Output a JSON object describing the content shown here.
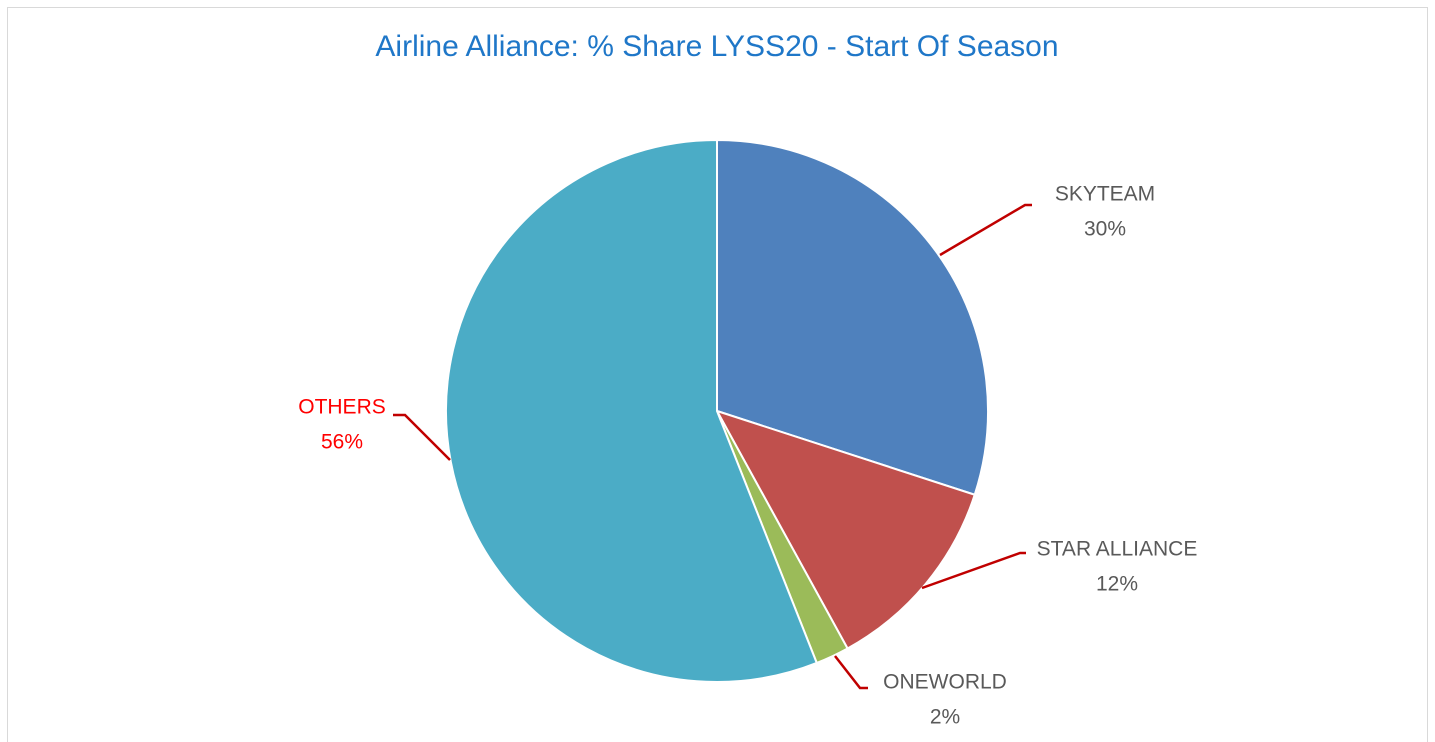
{
  "chart_data": {
    "type": "pie",
    "title": "Airline Alliance: % Share LYSS20 - Start Of Season",
    "categories": [
      "SKYTEAM",
      "STAR ALLIANCE",
      "ONEWORLD",
      "OTHERS"
    ],
    "values": [
      30,
      12,
      2,
      56
    ],
    "value_labels": [
      "30%",
      "12%",
      "2%",
      "56%"
    ],
    "colors": [
      "#4f81bd",
      "#c0504d",
      "#9bbb59",
      "#4bacc6"
    ],
    "label_colors": [
      "#595959",
      "#595959",
      "#595959",
      "#ff0000"
    ],
    "leader_color": "#c00000"
  }
}
